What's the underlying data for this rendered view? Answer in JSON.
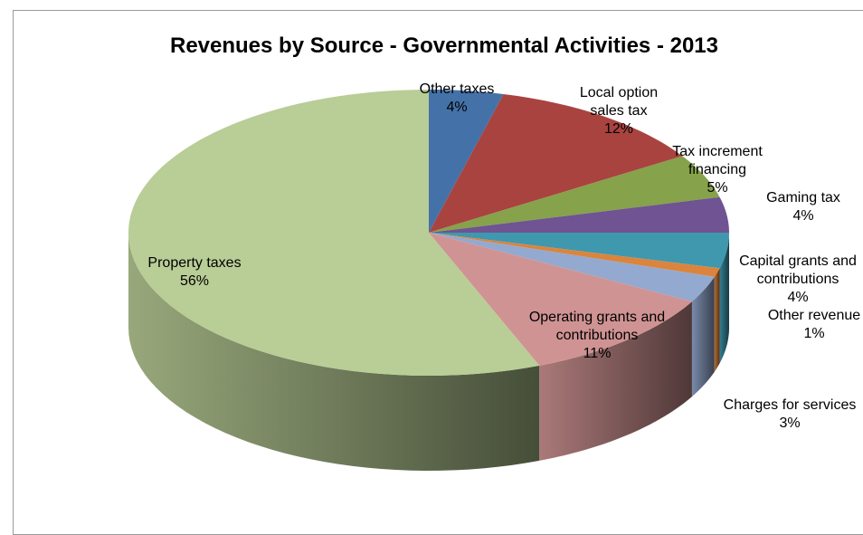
{
  "chart_data": {
    "type": "pie",
    "title": "Revenues by Source - Governmental Activities - 2013",
    "slices": [
      {
        "label": "Other taxes",
        "value": 4,
        "value_label": "4%",
        "color": "#4472A8"
      },
      {
        "label": "Local option sales tax",
        "value": 12,
        "value_label": "12%",
        "color": "#A94340"
      },
      {
        "label": "Tax increment financing",
        "value": 5,
        "value_label": "5%",
        "color": "#86A24A"
      },
      {
        "label": "Gaming tax",
        "value": 4,
        "value_label": "4%",
        "color": "#6F5392"
      },
      {
        "label": "Capital grants and contributions",
        "value": 4,
        "value_label": "4%",
        "color": "#3F98AE"
      },
      {
        "label": "Other revenue",
        "value": 1,
        "value_label": "1%",
        "color": "#DB843D"
      },
      {
        "label": "Charges for services",
        "value": 3,
        "value_label": "3%",
        "color": "#93A9CF"
      },
      {
        "label": "Operating grants and contributions",
        "value": 11,
        "value_label": "11%",
        "color": "#D09393"
      },
      {
        "label": "Property taxes",
        "value": 56,
        "value_label": "56%",
        "color": "#B9CD96"
      }
    ],
    "legend": "none"
  }
}
